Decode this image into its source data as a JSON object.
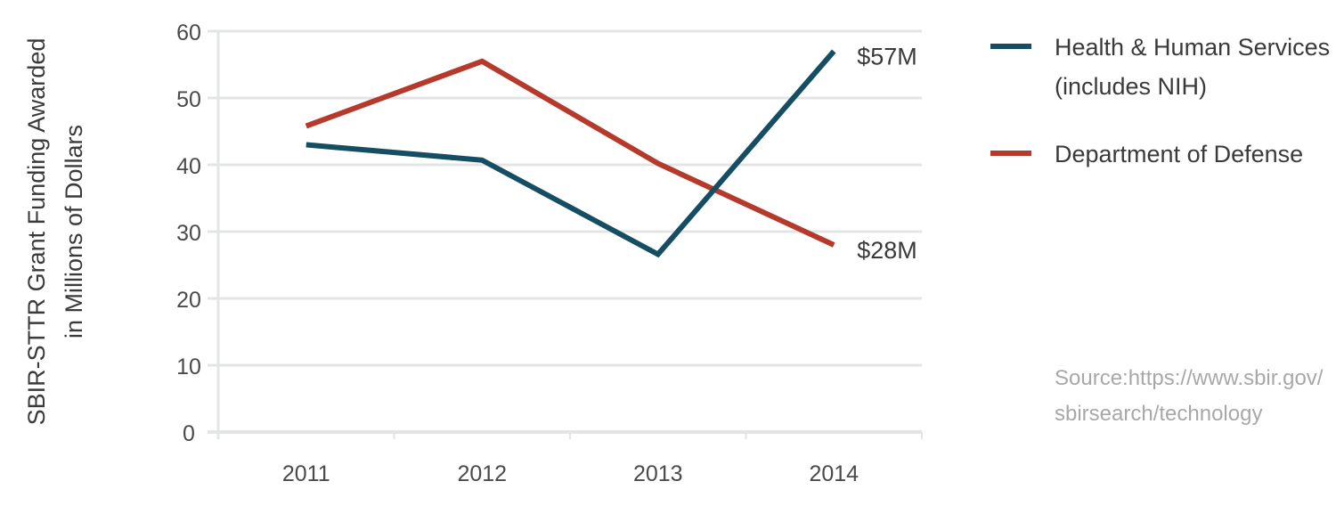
{
  "chart_data": {
    "type": "line",
    "title": "",
    "xlabel": "",
    "ylabel_lines": [
      "SBIR-STTR Grant Funding Awarded",
      "in Millions of Dollars"
    ],
    "categories": [
      "2011",
      "2012",
      "2013",
      "2014"
    ],
    "ylim": [
      0,
      60
    ],
    "yticks": [
      0,
      10,
      20,
      30,
      40,
      50,
      60
    ],
    "grid": true,
    "legend_placement": "right",
    "series": [
      {
        "name_lines": [
          "Health & Human Services",
          "(includes NIH)"
        ],
        "color": "#154e63",
        "values": [
          43,
          40.7,
          26.6,
          57
        ],
        "end_label": "$57M"
      },
      {
        "name_lines": [
          "Department of Defense"
        ],
        "color": "#b53a2c",
        "values": [
          45.8,
          55.5,
          40.2,
          28
        ],
        "end_label": "$28M"
      }
    ],
    "source_lines": [
      "Source:https://www.sbir.gov/",
      "sbirsearch/technology"
    ]
  }
}
